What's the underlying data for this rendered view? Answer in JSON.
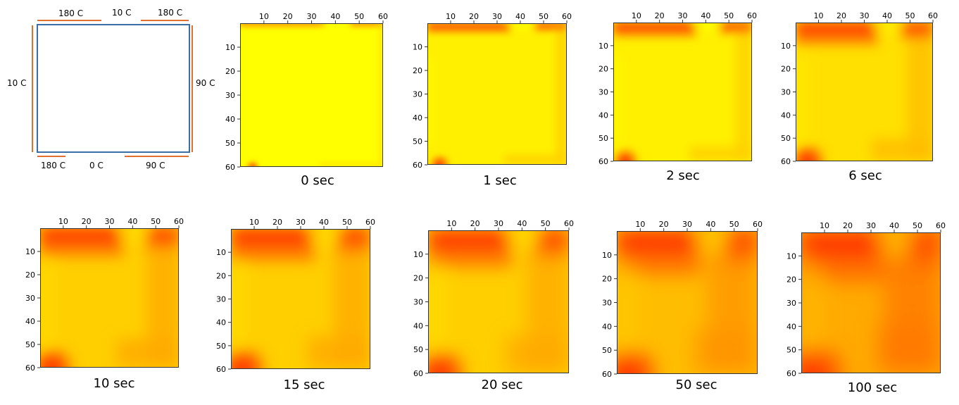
{
  "diagram": {
    "labels": {
      "top_left": "180 C",
      "top_mid": "10 C",
      "top_right": "180 C",
      "left": "10 C",
      "right": "90 C",
      "bottom_left": "180 C",
      "bottom_mid": "0 C",
      "bottom_right": "90 C"
    },
    "colors": {
      "plate": "#3a6ea5",
      "heater": "#e07030"
    }
  },
  "chart_data": [
    {
      "type": "heatmap",
      "caption": "0 sec",
      "xticks": [
        10,
        20,
        30,
        40,
        50,
        60
      ],
      "yticks": [
        10,
        20,
        30,
        40,
        50,
        60
      ],
      "xlim": [
        0,
        60
      ],
      "ylim": [
        0,
        60
      ],
      "grid": false
    },
    {
      "type": "heatmap",
      "caption": "1 sec",
      "xticks": [
        10,
        20,
        30,
        40,
        50,
        60
      ],
      "yticks": [
        10,
        20,
        30,
        40,
        50,
        60
      ],
      "xlim": [
        0,
        60
      ],
      "ylim": [
        0,
        60
      ],
      "grid": false
    },
    {
      "type": "heatmap",
      "caption": "2 sec",
      "xticks": [
        10,
        20,
        30,
        40,
        50,
        60
      ],
      "yticks": [
        10,
        20,
        30,
        40,
        50,
        60
      ],
      "xlim": [
        0,
        60
      ],
      "ylim": [
        0,
        60
      ],
      "grid": false
    },
    {
      "type": "heatmap",
      "caption": "6 sec",
      "xticks": [
        10,
        20,
        30,
        40,
        50,
        60
      ],
      "yticks": [
        10,
        20,
        30,
        40,
        50,
        60
      ],
      "xlim": [
        0,
        60
      ],
      "ylim": [
        0,
        60
      ],
      "grid": false
    },
    {
      "type": "heatmap",
      "caption": "10 sec",
      "xticks": [
        10,
        20,
        30,
        40,
        50,
        60
      ],
      "yticks": [
        10,
        20,
        30,
        40,
        50,
        60
      ],
      "xlim": [
        0,
        60
      ],
      "ylim": [
        0,
        60
      ],
      "grid": false
    },
    {
      "type": "heatmap",
      "caption": "15 sec",
      "xticks": [
        10,
        20,
        30,
        40,
        50,
        60
      ],
      "yticks": [
        10,
        20,
        30,
        40,
        50,
        60
      ],
      "xlim": [
        0,
        60
      ],
      "ylim": [
        0,
        60
      ],
      "grid": false
    },
    {
      "type": "heatmap",
      "caption": "20 sec",
      "xticks": [
        10,
        20,
        30,
        40,
        50,
        60
      ],
      "yticks": [
        10,
        20,
        30,
        40,
        50,
        60
      ],
      "xlim": [
        0,
        60
      ],
      "ylim": [
        0,
        60
      ],
      "grid": false
    },
    {
      "type": "heatmap",
      "caption": "50 sec",
      "xticks": [
        10,
        20,
        30,
        40,
        50,
        60
      ],
      "yticks": [
        10,
        20,
        30,
        40,
        50,
        60
      ],
      "xlim": [
        0,
        60
      ],
      "ylim": [
        0,
        60
      ],
      "grid": false
    },
    {
      "type": "heatmap",
      "caption": "100 sec",
      "xticks": [
        10,
        20,
        30,
        40,
        50,
        60
      ],
      "yticks": [
        10,
        20,
        30,
        40,
        50,
        60
      ],
      "xlim": [
        0,
        60
      ],
      "ylim": [
        0,
        60
      ],
      "grid": false
    }
  ]
}
